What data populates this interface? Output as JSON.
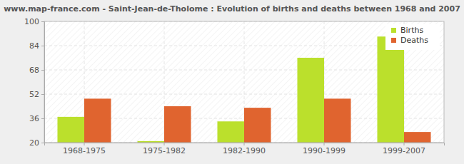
{
  "chart_data": {
    "type": "bar",
    "title": "www.map-france.com - Saint-Jean-de-Tholome : Evolution of births and deaths between 1968 and 2007",
    "categories": [
      "1968-1975",
      "1975-1982",
      "1982-1990",
      "1990-1999",
      "1999-2007"
    ],
    "series": [
      {
        "name": "Births",
        "color": "#bbe02c",
        "values": [
          37,
          21,
          34,
          76,
          90
        ]
      },
      {
        "name": "Deaths",
        "color": "#e0642f",
        "values": [
          49,
          44,
          43,
          49,
          27
        ]
      }
    ],
    "ylim": [
      20,
      100
    ],
    "yticks": [
      20,
      36,
      52,
      68,
      84,
      100
    ],
    "grid": true,
    "legend": "upper right"
  }
}
